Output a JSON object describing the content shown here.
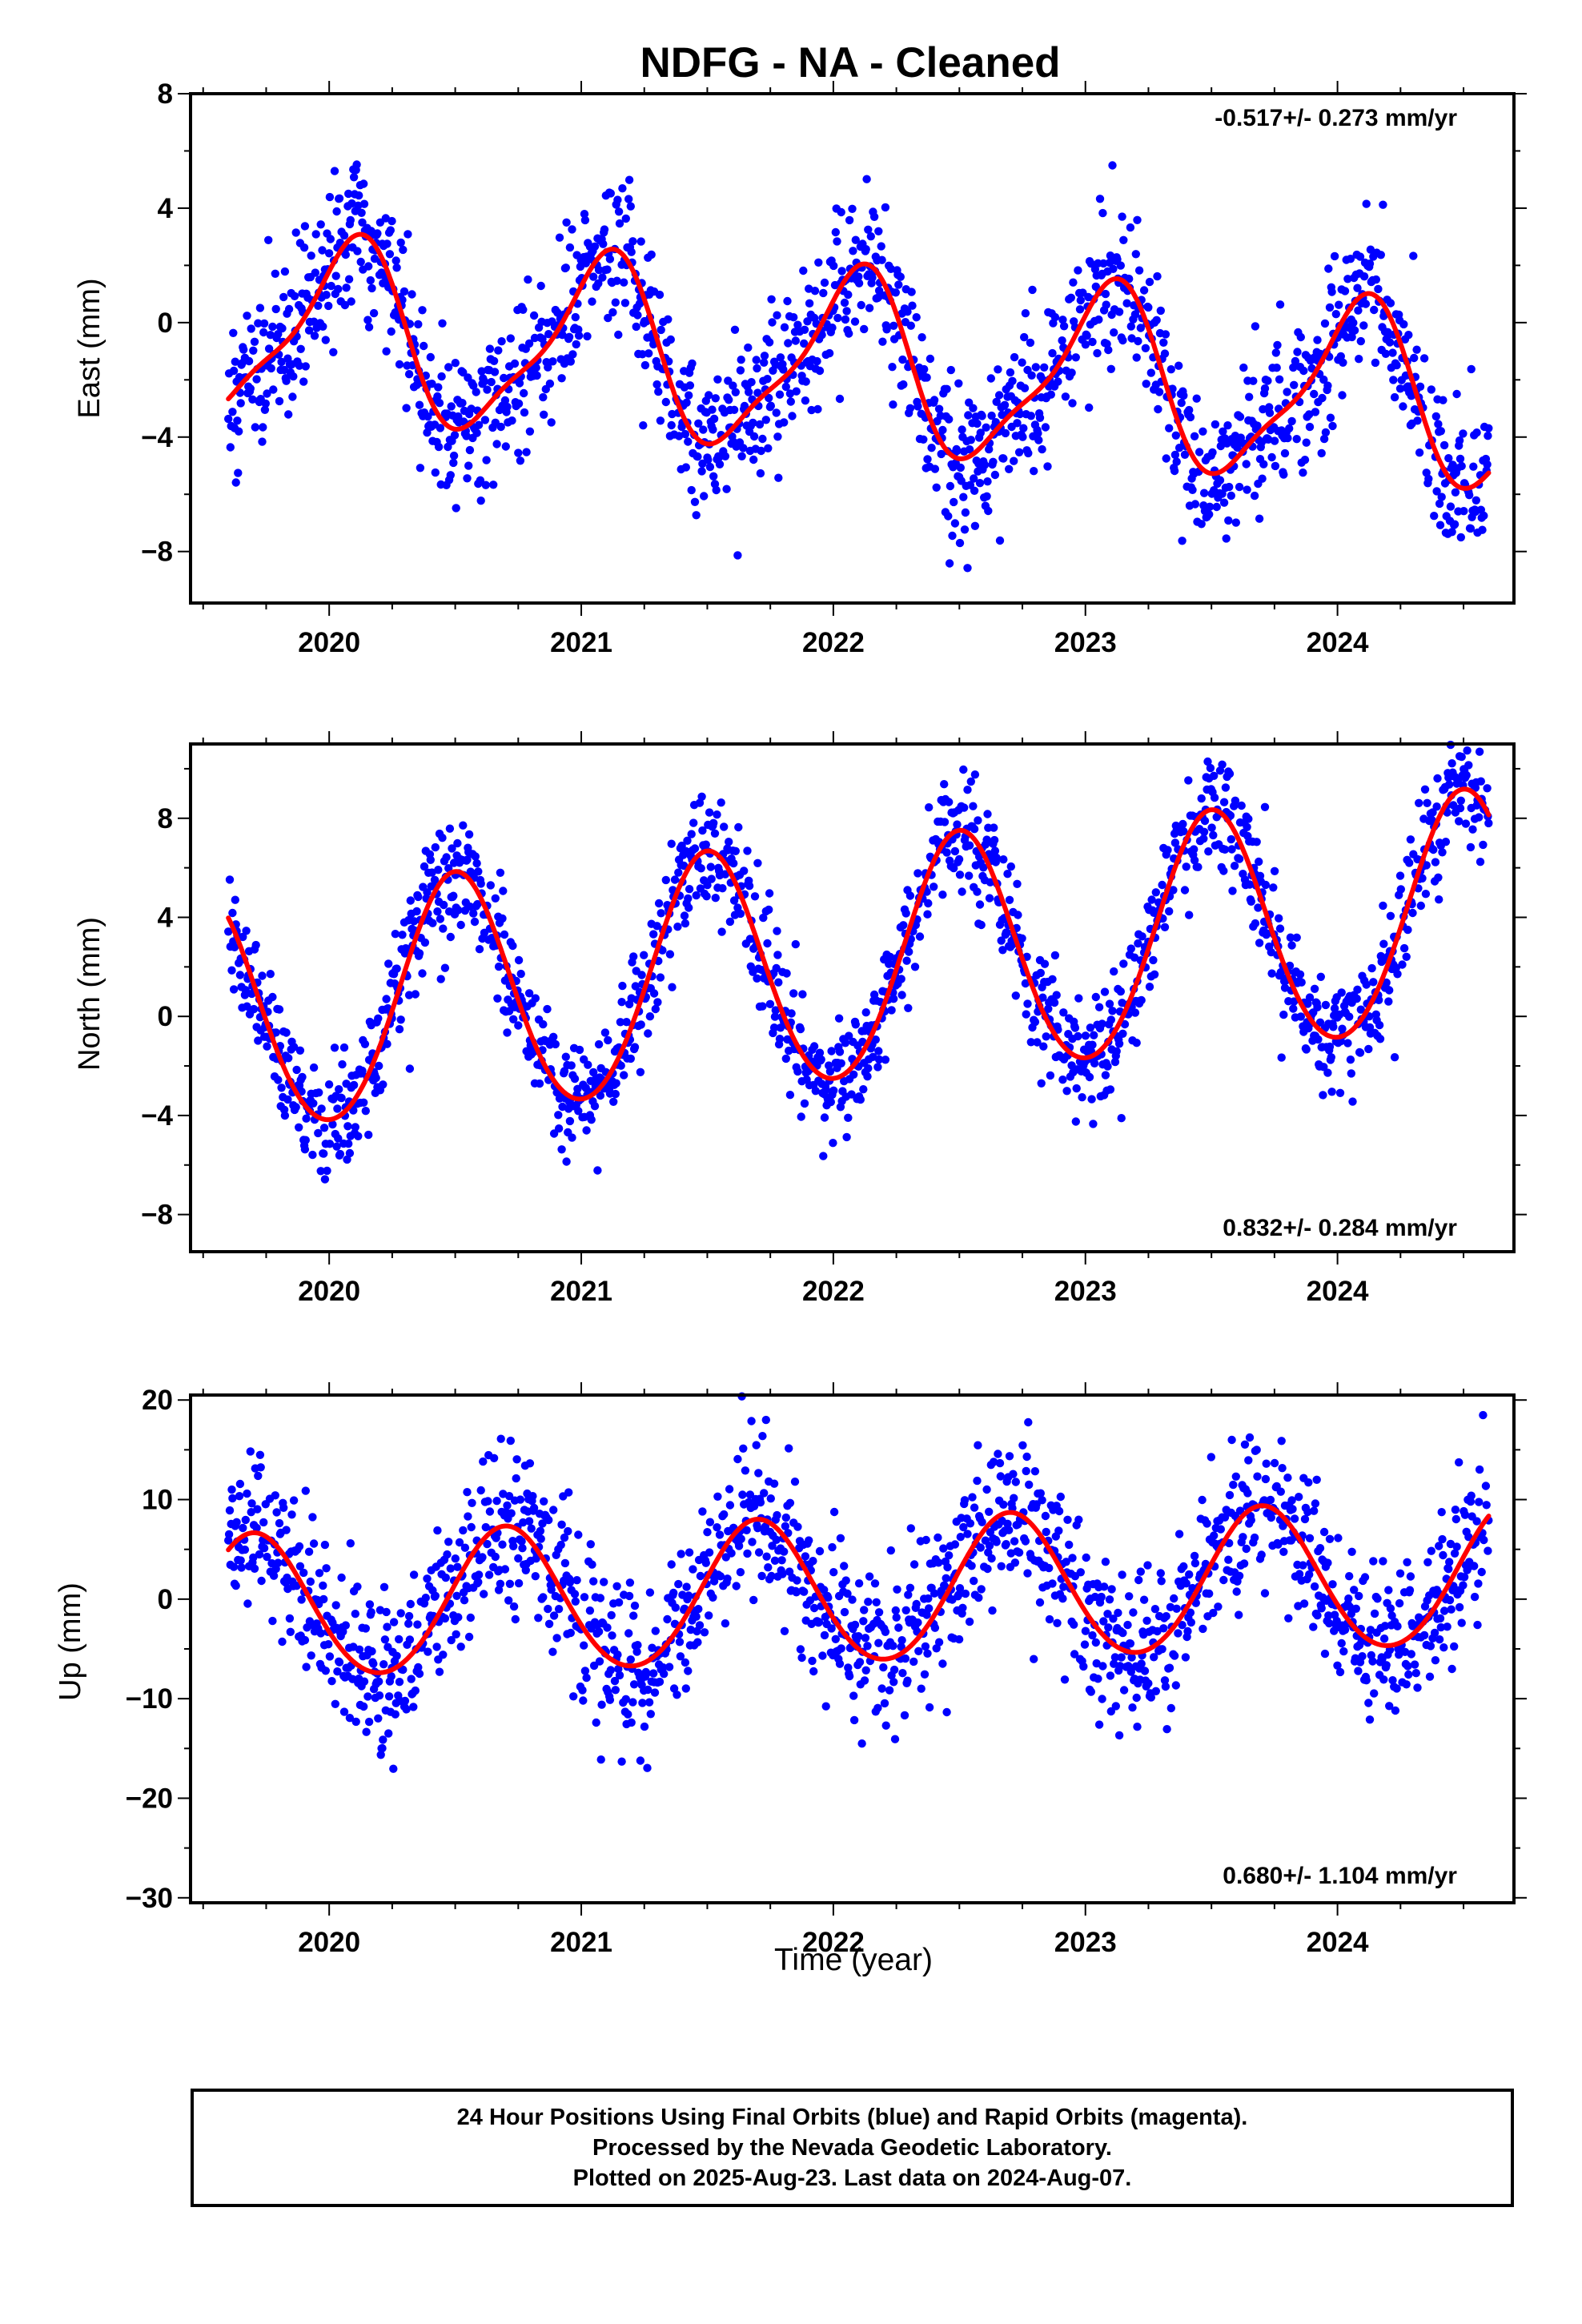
{
  "title": "NDFG  - NA - Cleaned",
  "xlabel": "Time (year)",
  "colors": {
    "final_orbits": "#0000ff",
    "model_fit": "#ff0000",
    "frame": "#000000"
  },
  "footer": {
    "line1": "24 Hour Positions Using Final Orbits (blue) and Rapid Orbits (magenta).",
    "line2": "Processed by the Nevada Geodetic Laboratory.",
    "line3": "Plotted on 2025-Aug-23. Last data on 2024-Aug-07."
  },
  "chart_data": [
    {
      "type": "scatter",
      "ylabel": "East (mm)",
      "rate_label": "-0.517+/- 0.273 mm/yr",
      "xlim": [
        2019.45,
        2024.7
      ],
      "ylim": [
        -9.8,
        8.0
      ],
      "x_ticks": [
        2020,
        2021,
        2022,
        2023,
        2024
      ],
      "x_tick_labels": [
        "2020",
        "2021",
        "2022",
        "2023",
        "2024"
      ],
      "y_ticks": [
        -8,
        -4,
        0,
        4,
        8
      ],
      "y_tick_labels": [
        "−8",
        "−4",
        "0",
        "4",
        "8"
      ],
      "x_start": 2019.6,
      "x_end": 2024.6,
      "model": {
        "trend": -0.517,
        "offset": -0.2,
        "annual": {
          "amplitude": 3.0,
          "peak": 0.08
        },
        "semiannual": {
          "amplitude": 0.8,
          "peak": 0.17
        }
      },
      "scatter": 1.3,
      "series": [
        {
          "name": "Final Orbits",
          "kind": "points",
          "color": "#0000ff"
        },
        {
          "name": "Rapid Orbits",
          "kind": "points",
          "color": "#ff00ff"
        },
        {
          "name": "Model fit",
          "kind": "line",
          "color": "#ff0000"
        }
      ]
    },
    {
      "type": "scatter",
      "ylabel": "North (mm)",
      "rate_label": "0.832+/- 0.284 mm/yr",
      "xlim": [
        2019.45,
        2024.7
      ],
      "ylim": [
        -9.5,
        11.0
      ],
      "x_ticks": [
        2020,
        2021,
        2022,
        2023,
        2024
      ],
      "x_tick_labels": [
        "2020",
        "2021",
        "2022",
        "2023",
        "2024"
      ],
      "y_ticks": [
        -8,
        -4,
        0,
        4,
        8
      ],
      "y_tick_labels": [
        "−8",
        "−4",
        "0",
        "4",
        "8"
      ],
      "x_start": 2019.6,
      "x_end": 2024.6,
      "model": {
        "trend": 0.832,
        "offset": 0.0,
        "annual": {
          "amplitude": 4.8,
          "peak": 0.5
        },
        "semiannual": {
          "amplitude": 0.3,
          "peak": 0.0
        }
      },
      "scatter": 1.2,
      "series": [
        {
          "name": "Final Orbits",
          "kind": "points",
          "color": "#0000ff"
        },
        {
          "name": "Rapid Orbits",
          "kind": "points",
          "color": "#ff00ff"
        },
        {
          "name": "Model fit",
          "kind": "line",
          "color": "#ff0000"
        }
      ]
    },
    {
      "type": "scatter",
      "ylabel": "Up (mm)",
      "rate_label": "0.680+/- 1.104 mm/yr",
      "xlim": [
        2019.45,
        2024.7
      ],
      "ylim": [
        -30.5,
        20.5
      ],
      "x_ticks": [
        2020,
        2021,
        2022,
        2023,
        2024
      ],
      "x_tick_labels": [
        "2020",
        "2021",
        "2022",
        "2023",
        "2024"
      ],
      "y_ticks": [
        -30,
        -20,
        -10,
        0,
        10,
        20
      ],
      "y_tick_labels": [
        "−30",
        "−20",
        "−10",
        "0",
        "10",
        "20"
      ],
      "x_start": 2019.6,
      "x_end": 2024.6,
      "model": {
        "trend": 0.68,
        "offset": -1.0,
        "annual": {
          "amplitude": 7.2,
          "peak": 0.7
        },
        "semiannual": {
          "amplitude": 0.4,
          "peak": 0.2
        }
      },
      "scatter": 4.0,
      "series": [
        {
          "name": "Final Orbits",
          "kind": "points",
          "color": "#0000ff"
        },
        {
          "name": "Rapid Orbits",
          "kind": "points",
          "color": "#ff00ff"
        },
        {
          "name": "Model fit",
          "kind": "line",
          "color": "#ff0000"
        }
      ]
    }
  ]
}
